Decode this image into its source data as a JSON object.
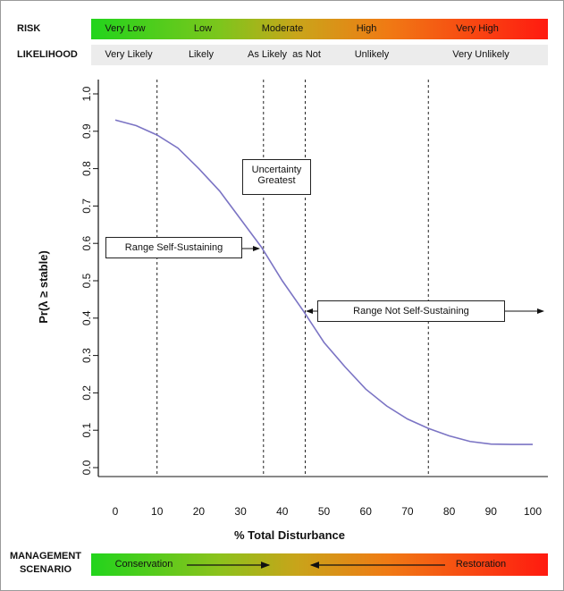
{
  "risk": {
    "label": "RISK",
    "levels": [
      "Very Low",
      "Low",
      "Moderate",
      "High",
      "Very High"
    ]
  },
  "likelihood": {
    "label": "LIKELIHOOD",
    "levels": [
      "Very Likely",
      "Likely",
      "As Likely  as Not",
      "Unlikely",
      "Very Unlikely"
    ]
  },
  "management": {
    "label_line1": "MANAGEMENT",
    "label_line2": "SCENARIO",
    "left": "Conservation",
    "right": "Restoration"
  },
  "annotations": {
    "uncertainty": "Uncertainty Greatest",
    "self_sustaining": "Range Self-Sustaining",
    "not_self_sustaining": "Range Not Self-Sustaining"
  },
  "chart_data": {
    "type": "line",
    "xlabel": "% Total Disturbance",
    "ylabel": "Pr(λ ≥ stable)",
    "xlim": [
      0,
      100
    ],
    "ylim": [
      0,
      1
    ],
    "xticks": [
      0,
      10,
      20,
      30,
      40,
      50,
      60,
      70,
      80,
      90,
      100
    ],
    "yticks": [
      "0.0",
      "0.1",
      "0.2",
      "0.3",
      "0.4",
      "0.5",
      "0.6",
      "0.7",
      "0.8",
      "0.9",
      "1.0"
    ],
    "vlines": [
      10,
      35.5,
      45.5,
      75
    ],
    "series": [
      {
        "name": "Pr stable",
        "color": "#7b74c4",
        "x": [
          0,
          5,
          10,
          15,
          20,
          25,
          30,
          35,
          40,
          45,
          50,
          55,
          60,
          65,
          70,
          75,
          80,
          85,
          90,
          95,
          100
        ],
        "y": [
          0.93,
          0.915,
          0.89,
          0.855,
          0.8,
          0.74,
          0.665,
          0.59,
          0.5,
          0.42,
          0.335,
          0.27,
          0.21,
          0.165,
          0.13,
          0.105,
          0.085,
          0.07,
          0.063,
          0.062,
          0.062
        ]
      }
    ]
  }
}
